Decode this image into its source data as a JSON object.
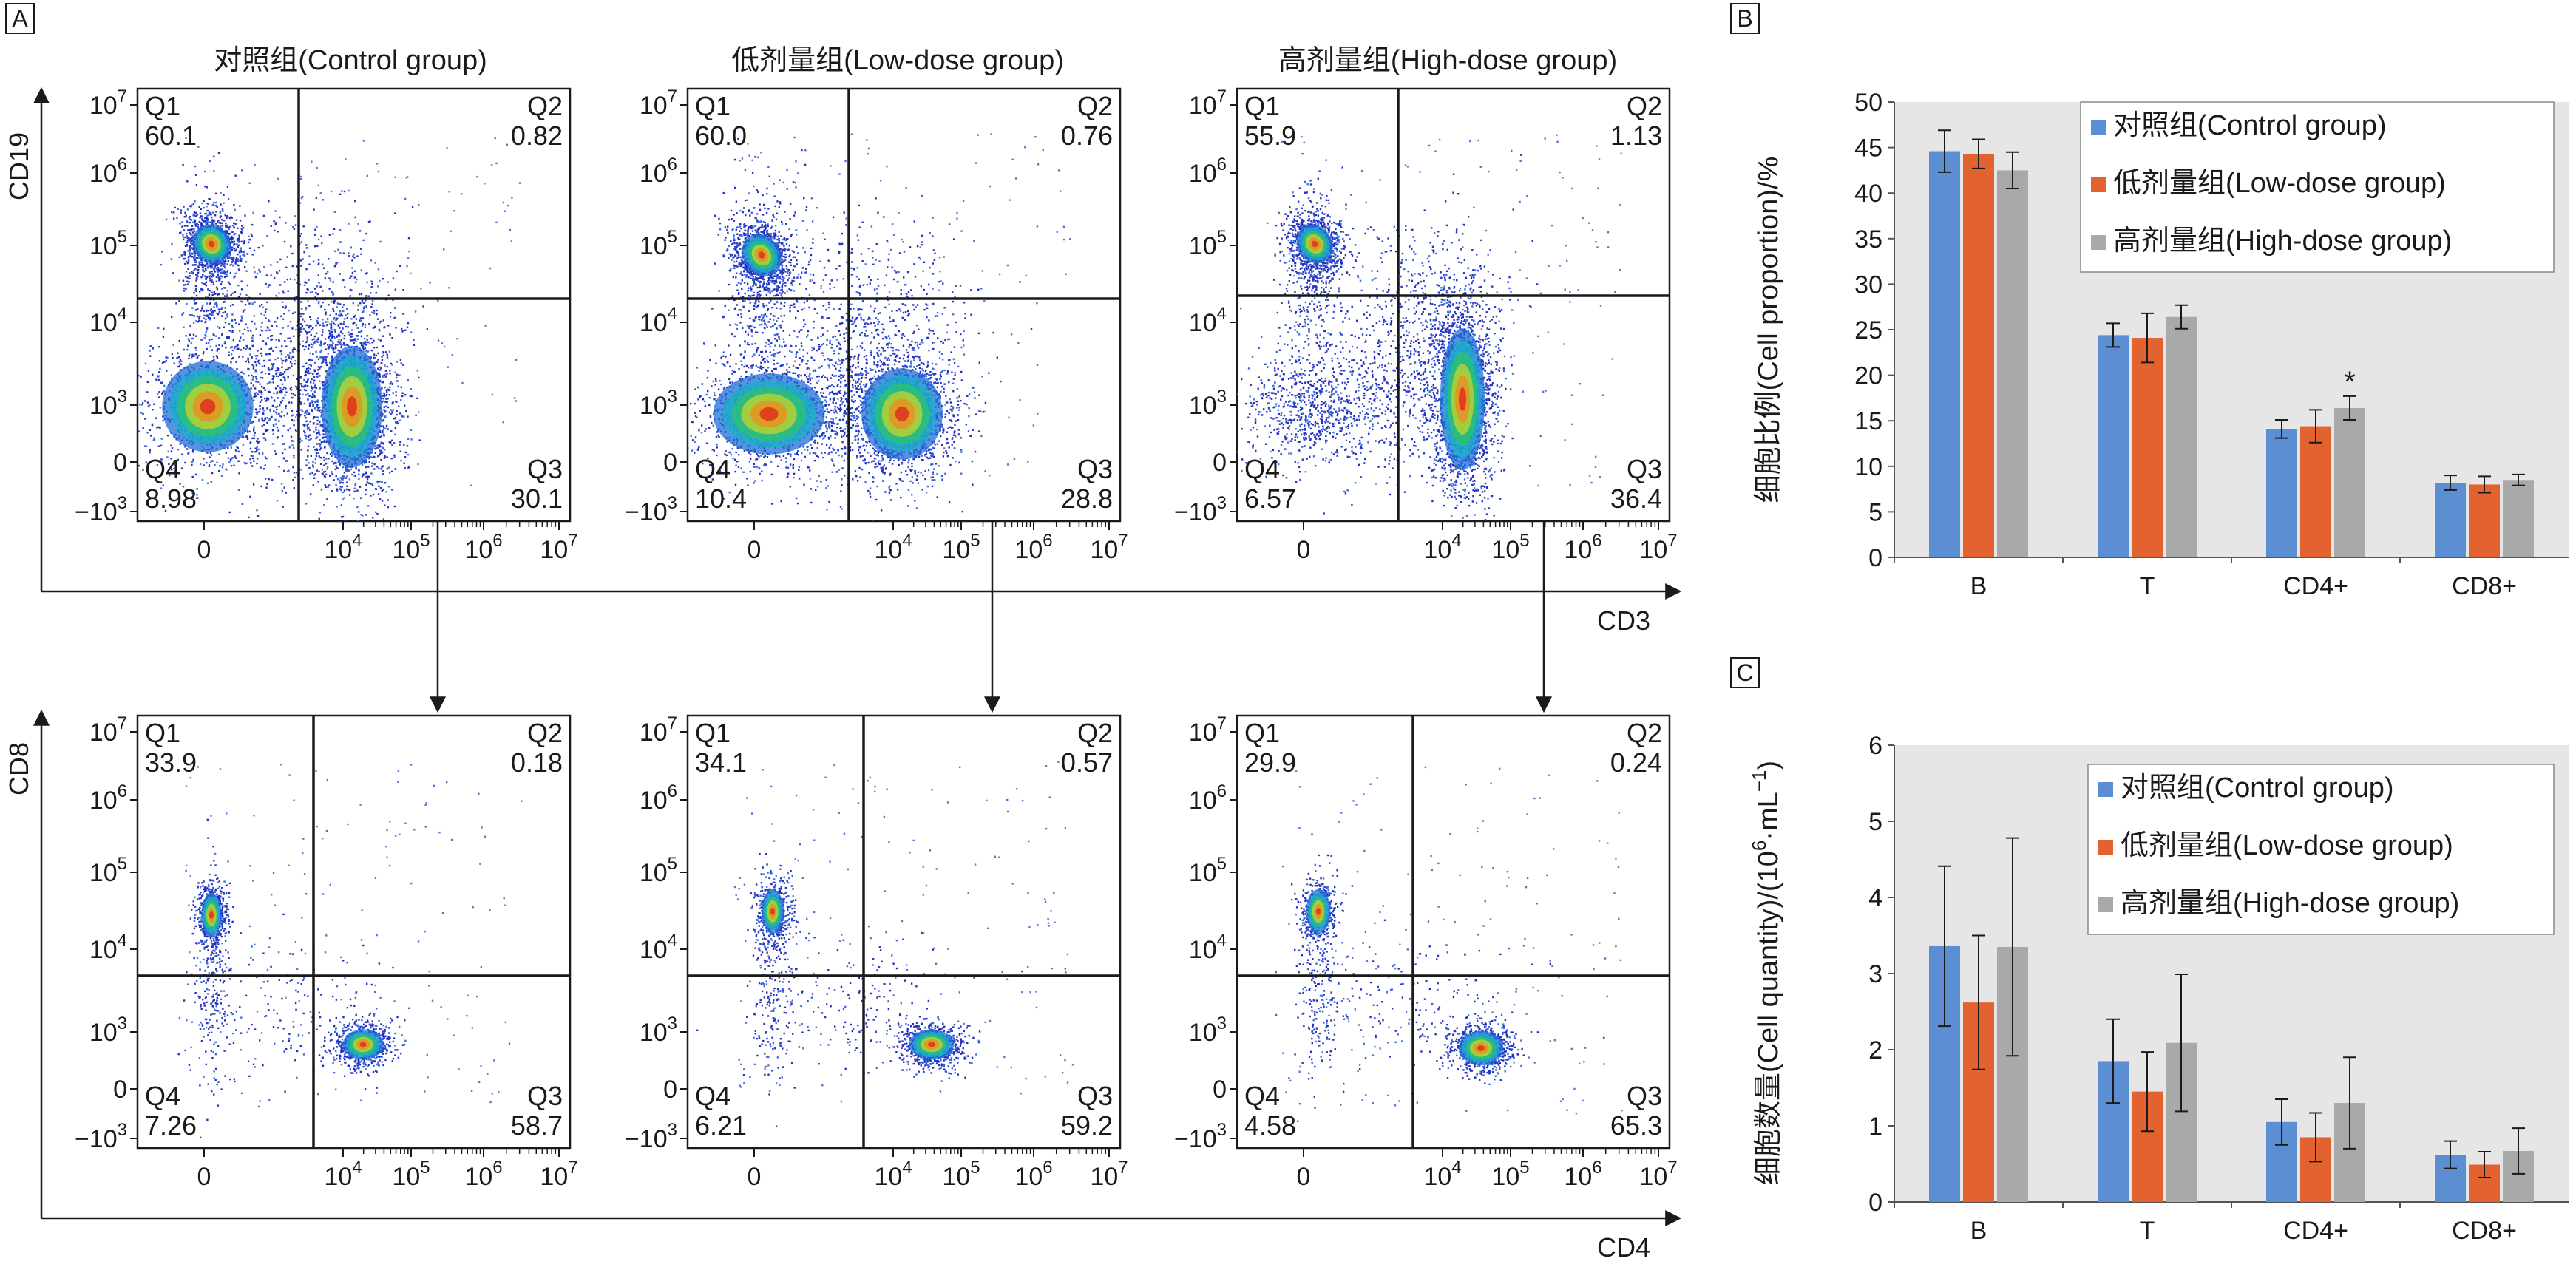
{
  "panel_labels": {
    "a": "A",
    "b": "B",
    "c": "C"
  },
  "group_titles": [
    "对照组(Control group)",
    "低剂量组(Low-dose group)",
    "高剂量组(High-dose group)"
  ],
  "flow": {
    "top_y_label": "CD19",
    "top_x_label": "CD3",
    "bottom_y_label": "CD8",
    "bottom_x_label": "CD4",
    "y_ticks": [
      {
        "b": "10",
        "e": "7"
      },
      {
        "b": "10",
        "e": "6"
      },
      {
        "b": "10",
        "e": "5"
      },
      {
        "b": "10",
        "e": "4"
      },
      {
        "b": "10",
        "e": "3"
      },
      {
        "b": "0",
        "e": ""
      },
      {
        "b": "−10",
        "e": "3"
      }
    ],
    "x_ticks": [
      {
        "b": "0",
        "e": ""
      },
      {
        "b": "10",
        "e": "4"
      },
      {
        "b": "10",
        "e": "5"
      },
      {
        "b": "10",
        "e": "6"
      },
      {
        "b": "10",
        "e": "7"
      }
    ],
    "quad_names": [
      "Q1",
      "Q2",
      "Q3",
      "Q4"
    ],
    "top_quadrants": [
      {
        "q1": "60.1",
        "q2": "0.82",
        "q3": "30.1",
        "q4": "8.98"
      },
      {
        "q1": "60.0",
        "q2": "0.76",
        "q3": "28.8",
        "q4": "10.4"
      },
      {
        "q1": "55.9",
        "q2": "1.13",
        "q3": "36.4",
        "q4": "6.57"
      }
    ],
    "bottom_quadrants": [
      {
        "q1": "33.9",
        "q2": "0.18",
        "q3": "58.7",
        "q4": "7.26"
      },
      {
        "q1": "34.1",
        "q2": "0.57",
        "q3": "59.2",
        "q4": "6.21"
      },
      {
        "q1": "29.9",
        "q2": "0.24",
        "q3": "65.3",
        "q4": "4.58"
      }
    ]
  },
  "colors": {
    "control": "#5b8fd1",
    "low_dose": "#e2632f",
    "high_dose": "#a9a9a9",
    "plot_bg": "#e6e6e6",
    "density": [
      "#1b2aa8",
      "#1f6fd6",
      "#19b0c8",
      "#2cc46a",
      "#c8d42a",
      "#f08a1c",
      "#e0231c"
    ]
  },
  "chart_data": [
    {
      "type": "bar",
      "panel": "B",
      "categories": [
        "B",
        "T",
        "CD4+",
        "CD8+"
      ],
      "series": [
        {
          "name": "对照组(Control group)",
          "values": [
            44.6,
            24.4,
            14.1,
            8.2
          ],
          "error": [
            2.3,
            1.3,
            1.0,
            0.8
          ]
        },
        {
          "name": "低剂量组(Low-dose group)",
          "values": [
            44.3,
            24.1,
            14.4,
            8.0
          ],
          "error": [
            1.6,
            2.7,
            1.8,
            0.9
          ]
        },
        {
          "name": "高剂量组(High-dose group)",
          "values": [
            42.5,
            26.4,
            16.4,
            8.5
          ],
          "error": [
            2.0,
            1.3,
            1.3,
            0.6
          ]
        }
      ],
      "annotations": [
        {
          "category": "CD4+",
          "series": 2,
          "text": "*"
        }
      ],
      "ylabel": "细胞比例(Cell proportion)/%",
      "ylim": [
        0,
        50
      ],
      "yticks": [
        0,
        5,
        10,
        15,
        20,
        25,
        30,
        35,
        40,
        45,
        50
      ],
      "legend": "top-right",
      "grid": false
    },
    {
      "type": "bar",
      "panel": "C",
      "categories": [
        "B",
        "T",
        "CD4+",
        "CD8+"
      ],
      "series": [
        {
          "name": "对照组(Control group)",
          "values": [
            3.36,
            1.85,
            1.05,
            0.62
          ],
          "error": [
            1.05,
            0.55,
            0.3,
            0.18
          ]
        },
        {
          "name": "低剂量组(Low-dose group)",
          "values": [
            2.62,
            1.45,
            0.85,
            0.49
          ],
          "error": [
            0.88,
            0.52,
            0.32,
            0.17
          ]
        },
        {
          "name": "高剂量组(High-dose group)",
          "values": [
            3.35,
            2.09,
            1.3,
            0.67
          ],
          "error": [
            1.43,
            0.9,
            0.6,
            0.3
          ]
        }
      ],
      "ylabel_main": "细胞数量(Cell quantity)/(10",
      "ylabel_sup1": "6",
      "ylabel_mid": "·mL",
      "ylabel_sup2": "−1",
      "ylabel_end": ")",
      "ylim": [
        0,
        6
      ],
      "yticks": [
        0,
        1,
        2,
        3,
        4,
        5,
        6
      ],
      "legend": "top-right",
      "grid": false
    }
  ]
}
